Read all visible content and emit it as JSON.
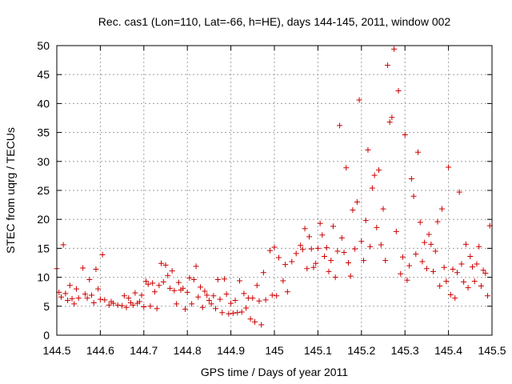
{
  "chart_data": {
    "type": "scatter",
    "title": "Rec. cas1 (Lon=110, Lat=-66, h=HE), days 144-145, 2011, window 002",
    "xlabel": "GPS time / Days of year 2011",
    "ylabel": "STEC from uqrg / TECUs",
    "xlim": [
      144.5,
      145.5
    ],
    "ylim": [
      0,
      50
    ],
    "x_ticks": [
      144.5,
      144.6,
      144.7,
      144.8,
      144.9,
      145,
      145.1,
      145.2,
      145.3,
      145.4,
      145.5
    ],
    "x_tick_labels": [
      "144.5",
      "144.6",
      "144.7",
      "144.8",
      "144.9",
      "145",
      "145.1",
      "145.2",
      "145.3",
      "145.4",
      "145.5"
    ],
    "y_ticks": [
      0,
      5,
      10,
      15,
      20,
      25,
      30,
      35,
      40,
      45,
      50
    ],
    "y_tick_labels": [
      "0",
      "5",
      "10",
      "15",
      "20",
      "25",
      "30",
      "35",
      "40",
      "45",
      "50"
    ],
    "grid": true,
    "legend": "none",
    "marker": "plus",
    "color": "#cc0000",
    "series": [
      {
        "points": [
          [
            144.5,
            11.5
          ],
          [
            144.505,
            7.4
          ],
          [
            144.51,
            6.6
          ],
          [
            144.515,
            15.6
          ],
          [
            144.52,
            7.2
          ],
          [
            144.525,
            6.0
          ],
          [
            144.53,
            8.6
          ],
          [
            144.535,
            6.3
          ],
          [
            144.54,
            5.4
          ],
          [
            144.545,
            8.0
          ],
          [
            144.55,
            6.4
          ],
          [
            144.56,
            11.6
          ],
          [
            144.565,
            7.1
          ],
          [
            144.57,
            6.4
          ],
          [
            144.575,
            9.6
          ],
          [
            144.58,
            6.9
          ],
          [
            144.585,
            5.6
          ],
          [
            144.59,
            11.4
          ],
          [
            144.595,
            8.0
          ],
          [
            144.6,
            6.2
          ],
          [
            144.605,
            13.9
          ],
          [
            144.61,
            6.1
          ],
          [
            144.62,
            5.2
          ],
          [
            144.625,
            5.8
          ],
          [
            144.63,
            5.5
          ],
          [
            144.64,
            5.2
          ],
          [
            144.65,
            5.1
          ],
          [
            144.655,
            6.8
          ],
          [
            144.66,
            4.8
          ],
          [
            144.665,
            6.4
          ],
          [
            144.67,
            5.6
          ],
          [
            144.675,
            5.2
          ],
          [
            144.68,
            7.3
          ],
          [
            144.685,
            5.5
          ],
          [
            144.69,
            5.8
          ],
          [
            144.695,
            6.9
          ],
          [
            144.7,
            4.9
          ],
          [
            144.705,
            9.3
          ],
          [
            144.71,
            8.8
          ],
          [
            144.715,
            5.0
          ],
          [
            144.72,
            9.0
          ],
          [
            144.725,
            7.5
          ],
          [
            144.73,
            4.6
          ],
          [
            144.735,
            8.6
          ],
          [
            144.74,
            12.4
          ],
          [
            144.745,
            9.2
          ],
          [
            144.75,
            12.1
          ],
          [
            144.755,
            10.3
          ],
          [
            144.76,
            8.1
          ],
          [
            144.765,
            11.1
          ],
          [
            144.77,
            7.7
          ],
          [
            144.775,
            5.4
          ],
          [
            144.78,
            9.1
          ],
          [
            144.785,
            7.8
          ],
          [
            144.79,
            8.1
          ],
          [
            144.795,
            4.5
          ],
          [
            144.8,
            7.4
          ],
          [
            144.805,
            9.9
          ],
          [
            144.81,
            5.4
          ],
          [
            144.815,
            9.6
          ],
          [
            144.82,
            11.9
          ],
          [
            144.825,
            6.6
          ],
          [
            144.83,
            8.3
          ],
          [
            144.835,
            4.8
          ],
          [
            144.84,
            7.6
          ],
          [
            144.845,
            6.9
          ],
          [
            144.85,
            6.0
          ],
          [
            144.855,
            5.4
          ],
          [
            144.86,
            6.8
          ],
          [
            144.865,
            4.6
          ],
          [
            144.87,
            9.6
          ],
          [
            144.875,
            6.2
          ],
          [
            144.88,
            3.9
          ],
          [
            144.885,
            9.7
          ],
          [
            144.89,
            7.1
          ],
          [
            144.895,
            3.7
          ],
          [
            144.9,
            5.5
          ],
          [
            144.905,
            3.8
          ],
          [
            144.91,
            6.0
          ],
          [
            144.915,
            3.9
          ],
          [
            144.92,
            9.4
          ],
          [
            144.925,
            4.0
          ],
          [
            144.93,
            7.2
          ],
          [
            144.935,
            4.7
          ],
          [
            144.94,
            6.4
          ],
          [
            144.945,
            2.8
          ],
          [
            144.95,
            6.4
          ],
          [
            144.955,
            2.3
          ],
          [
            144.96,
            8.6
          ],
          [
            144.965,
            5.9
          ],
          [
            144.97,
            1.8
          ],
          [
            144.975,
            10.8
          ],
          [
            144.98,
            6.1
          ],
          [
            144.99,
            14.6
          ],
          [
            144.995,
            6.9
          ],
          [
            145.0,
            15.2
          ],
          [
            145.005,
            6.8
          ],
          [
            145.01,
            13.4
          ],
          [
            145.02,
            9.4
          ],
          [
            145.025,
            12.2
          ],
          [
            145.03,
            7.5
          ],
          [
            145.04,
            12.7
          ],
          [
            145.05,
            14.1
          ],
          [
            145.06,
            15.5
          ],
          [
            145.065,
            14.8
          ],
          [
            145.07,
            18.4
          ],
          [
            145.075,
            11.5
          ],
          [
            145.08,
            17.0
          ],
          [
            145.085,
            14.9
          ],
          [
            145.09,
            11.7
          ],
          [
            145.095,
            12.4
          ],
          [
            145.1,
            15.0
          ],
          [
            145.105,
            19.3
          ],
          [
            145.11,
            17.3
          ],
          [
            145.115,
            13.6
          ],
          [
            145.12,
            15.1
          ],
          [
            145.125,
            11.0
          ],
          [
            145.13,
            12.9
          ],
          [
            145.135,
            18.8
          ],
          [
            145.14,
            10.0
          ],
          [
            145.145,
            14.5
          ],
          [
            145.15,
            36.2
          ],
          [
            145.155,
            16.8
          ],
          [
            145.16,
            14.3
          ],
          [
            145.165,
            28.9
          ],
          [
            145.17,
            12.5
          ],
          [
            145.175,
            10.2
          ],
          [
            145.18,
            21.6
          ],
          [
            145.185,
            14.9
          ],
          [
            145.19,
            23.0
          ],
          [
            145.195,
            40.6
          ],
          [
            145.2,
            16.2
          ],
          [
            145.205,
            12.9
          ],
          [
            145.21,
            19.8
          ],
          [
            145.215,
            32.0
          ],
          [
            145.22,
            15.3
          ],
          [
            145.225,
            25.4
          ],
          [
            145.23,
            27.6
          ],
          [
            145.235,
            18.6
          ],
          [
            145.24,
            28.5
          ],
          [
            145.245,
            15.6
          ],
          [
            145.25,
            21.8
          ],
          [
            145.255,
            12.9
          ],
          [
            145.26,
            46.6
          ],
          [
            145.265,
            36.8
          ],
          [
            145.27,
            37.6
          ],
          [
            145.275,
            49.4
          ],
          [
            145.28,
            17.9
          ],
          [
            145.285,
            42.2
          ],
          [
            145.29,
            10.6
          ],
          [
            145.295,
            13.5
          ],
          [
            145.3,
            34.6
          ],
          [
            145.305,
            9.5
          ],
          [
            145.31,
            12.0
          ],
          [
            145.315,
            27.0
          ],
          [
            145.32,
            24.0
          ],
          [
            145.325,
            14.0
          ],
          [
            145.33,
            31.6
          ],
          [
            145.335,
            19.5
          ],
          [
            145.34,
            12.7
          ],
          [
            145.345,
            16.0
          ],
          [
            145.35,
            11.5
          ],
          [
            145.355,
            17.4
          ],
          [
            145.36,
            15.7
          ],
          [
            145.365,
            11.0
          ],
          [
            145.37,
            14.5
          ],
          [
            145.375,
            19.6
          ],
          [
            145.38,
            8.5
          ],
          [
            145.385,
            21.8
          ],
          [
            145.39,
            11.7
          ],
          [
            145.395,
            9.3
          ],
          [
            145.4,
            29.0
          ],
          [
            145.405,
            7.0
          ],
          [
            145.41,
            11.4
          ],
          [
            145.415,
            6.4
          ],
          [
            145.42,
            10.8
          ],
          [
            145.425,
            24.7
          ],
          [
            145.43,
            12.3
          ],
          [
            145.435,
            9.2
          ],
          [
            145.44,
            15.7
          ],
          [
            145.445,
            8.2
          ],
          [
            145.45,
            13.6
          ],
          [
            145.455,
            11.8
          ],
          [
            145.46,
            9.3
          ],
          [
            145.465,
            12.3
          ],
          [
            145.47,
            15.3
          ],
          [
            145.475,
            8.5
          ],
          [
            145.48,
            11.2
          ],
          [
            145.485,
            10.7
          ],
          [
            145.49,
            6.8
          ],
          [
            145.495,
            18.9
          ]
        ]
      }
    ]
  }
}
